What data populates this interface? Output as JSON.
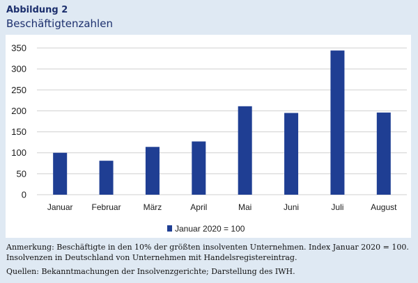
{
  "figure": {
    "label": "Abbildung 2",
    "title": "Beschäftigtenzahlen"
  },
  "colors": {
    "bar": "#1f3e93",
    "grid": "#cfcfcf",
    "text": "#1a1a1a",
    "heading": "#1c2f6d",
    "background": "#dfe9f3"
  },
  "chart_data": {
    "type": "bar",
    "categories": [
      "Januar",
      "Februar",
      "März",
      "April",
      "Mai",
      "Juni",
      "Juli",
      "August"
    ],
    "series": [
      {
        "name": "Januar 2020 = 100",
        "values": [
          100,
          81,
          114,
          127,
          211,
          195,
          344,
          196
        ]
      }
    ],
    "ylim": [
      0,
      350
    ],
    "yticks": [
      0,
      50,
      100,
      150,
      200,
      250,
      300,
      350
    ],
    "grid": true,
    "legend_position": "bottom"
  },
  "notes": {
    "annotation": "Anmerkung: Beschäftigte in den 10% der größten insolventen Unternehmen. Index Januar 2020 = 100. Insolvenzen in Deutschland von Unternehmen mit Handelsregistereintrag.",
    "sources": "Quellen: Bekanntmachungen der Insolvenzgerichte; Darstellung des IWH."
  }
}
